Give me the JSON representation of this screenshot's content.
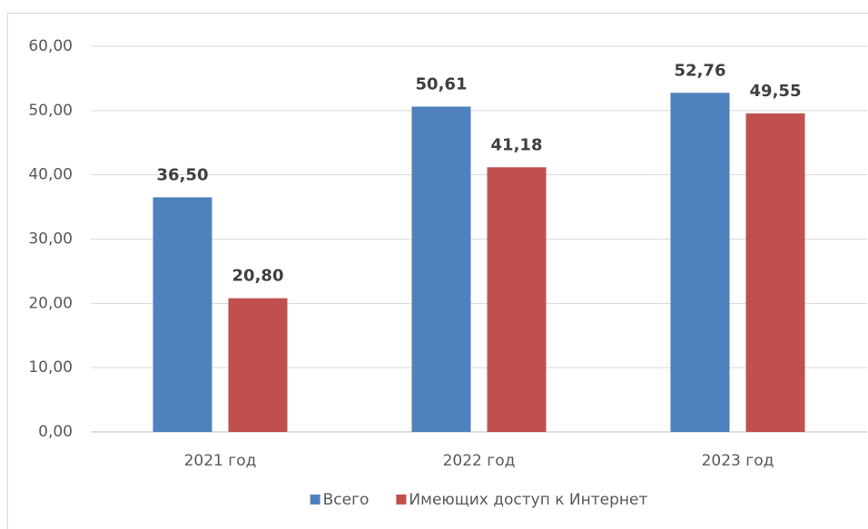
{
  "chart_data": {
    "type": "bar",
    "categories": [
      "2021 год",
      "2022 год",
      "2023 год"
    ],
    "series": [
      {
        "name": "Всего",
        "color": "#4f81bd",
        "values": [
          36.5,
          50.61,
          52.76
        ],
        "value_labels": [
          "36,50",
          "50,61",
          "52,76"
        ]
      },
      {
        "name": "Имеющих доступ к Интернет",
        "color": "#c0504d",
        "values": [
          20.8,
          41.18,
          49.55
        ],
        "value_labels": [
          "20,80",
          "41,18",
          "49,55"
        ]
      }
    ],
    "ylim": [
      0,
      60
    ],
    "yticks": [
      {
        "value": 0,
        "label": "0,00"
      },
      {
        "value": 10,
        "label": "10,00"
      },
      {
        "value": 20,
        "label": "20,00"
      },
      {
        "value": 30,
        "label": "30,00"
      },
      {
        "value": 40,
        "label": "40,00"
      },
      {
        "value": 50,
        "label": "50,00"
      },
      {
        "value": 60,
        "label": "60,00"
      }
    ],
    "grid": true,
    "legend": "bottom"
  }
}
